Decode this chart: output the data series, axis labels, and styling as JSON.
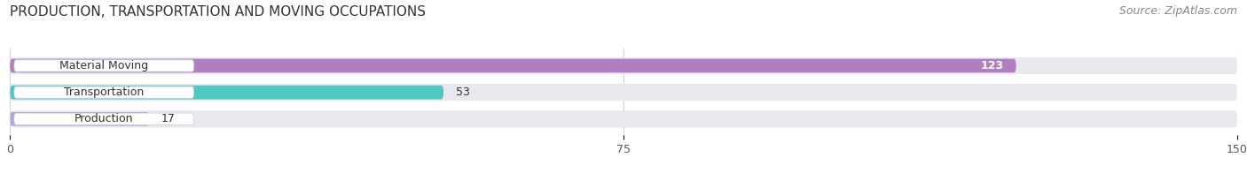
{
  "title": "PRODUCTION, TRANSPORTATION AND MOVING OCCUPATIONS",
  "source": "Source: ZipAtlas.com",
  "categories": [
    "Material Moving",
    "Transportation",
    "Production"
  ],
  "values": [
    123,
    53,
    17
  ],
  "bar_colors": [
    "#b07fc0",
    "#50c8c0",
    "#aaaadc"
  ],
  "bar_label_colors": [
    "white",
    "black",
    "black"
  ],
  "xlim": [
    0,
    150
  ],
  "xticks": [
    0,
    75,
    150
  ],
  "background_color": "#ffffff",
  "bar_background_color": "#e8e8ee",
  "title_fontsize": 11,
  "source_fontsize": 9,
  "bar_height": 0.52,
  "label_fontsize": 9,
  "val_label_fontsize": 9
}
